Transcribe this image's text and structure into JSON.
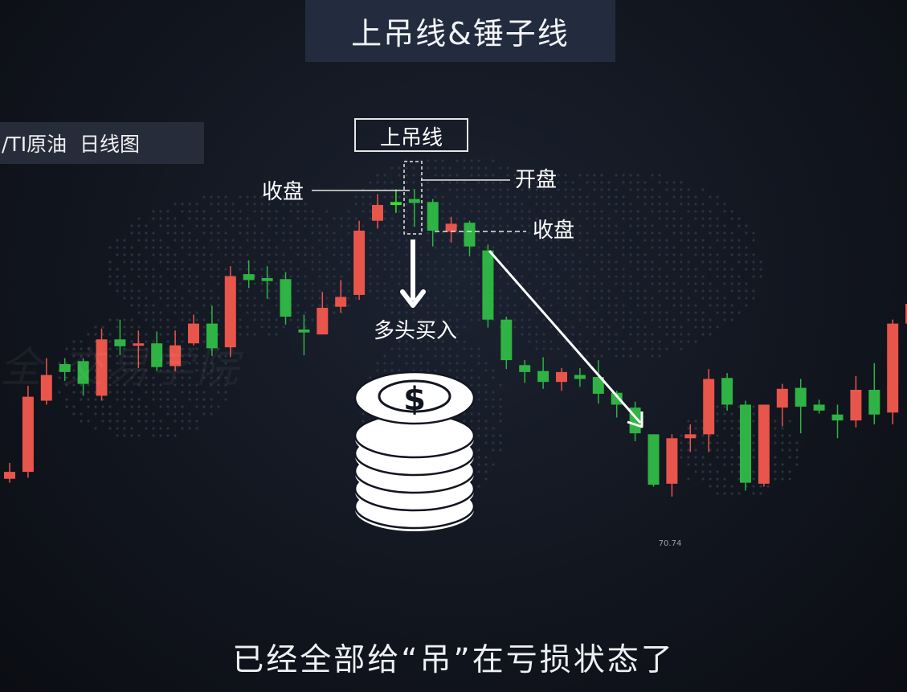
{
  "header": {
    "title": "上吊线&锤子线"
  },
  "source_tag": "/TI原油  日线图",
  "watermark": "全 交易学院",
  "subtitle": "已经全部给“吊”在亏损状态了",
  "annotations": {
    "hanging_label": "上吊线",
    "close_left": "收盘",
    "open": "开盘",
    "close_right": "收盘",
    "bulls_buy": "多头买入",
    "low_value": "70.74"
  },
  "colors": {
    "up": "#e8554a",
    "down": "#2fb344",
    "highlight": "#37e02a"
  },
  "icons": [
    "down-arrow-icon",
    "coin-stack-icon",
    "dollar-icon"
  ],
  "chart_data": {
    "type": "candlestick",
    "title": "上吊线&锤子线",
    "xlabel": "",
    "ylabel": "",
    "grid": false,
    "candles": [
      {
        "dir": "up",
        "open": 73.15,
        "close": 73.5,
        "high": 73.95,
        "low": 72.95
      },
      {
        "dir": "up",
        "open": 73.5,
        "close": 77.3,
        "high": 77.85,
        "low": 73.2
      },
      {
        "dir": "up",
        "open": 77.1,
        "close": 78.4,
        "high": 79.25,
        "low": 76.9
      },
      {
        "dir": "down",
        "open": 78.95,
        "close": 78.55,
        "high": 79.25,
        "low": 78.1
      },
      {
        "dir": "down",
        "open": 79.1,
        "close": 77.95,
        "high": 79.25,
        "low": 77.35
      },
      {
        "dir": "up",
        "open": 77.35,
        "close": 80.2,
        "high": 80.75,
        "low": 77.1
      },
      {
        "dir": "down",
        "open": 80.2,
        "close": 79.85,
        "high": 81.2,
        "low": 79.4
      },
      {
        "dir": "up",
        "open": 79.9,
        "close": 80.0,
        "high": 80.65,
        "low": 78.75
      },
      {
        "dir": "down",
        "open": 80.0,
        "close": 78.8,
        "high": 80.6,
        "low": 78.6
      },
      {
        "dir": "up",
        "open": 78.85,
        "close": 79.9,
        "high": 80.65,
        "low": 78.6
      },
      {
        "dir": "up",
        "open": 80.0,
        "close": 81.0,
        "high": 81.45,
        "low": 79.9
      },
      {
        "dir": "down",
        "open": 81.0,
        "close": 79.75,
        "high": 81.9,
        "low": 79.35
      },
      {
        "dir": "up",
        "open": 79.8,
        "close": 83.4,
        "high": 83.9,
        "low": 79.3
      },
      {
        "dir": "down",
        "open": 83.5,
        "close": 83.2,
        "high": 84.2,
        "low": 82.8
      },
      {
        "dir": "down",
        "open": 83.3,
        "close": 83.15,
        "high": 83.9,
        "low": 82.25
      },
      {
        "dir": "down",
        "open": 83.25,
        "close": 81.35,
        "high": 83.6,
        "low": 80.95
      },
      {
        "dir": "down",
        "open": 80.7,
        "close": 80.55,
        "high": 81.45,
        "low": 79.4
      },
      {
        "dir": "up",
        "open": 80.45,
        "close": 81.8,
        "high": 82.6,
        "low": 80.45
      },
      {
        "dir": "up",
        "open": 81.85,
        "close": 82.35,
        "high": 83.2,
        "low": 81.55
      },
      {
        "dir": "up",
        "open": 82.45,
        "close": 85.7,
        "high": 86.2,
        "low": 82.2
      },
      {
        "dir": "up",
        "open": 86.2,
        "close": 87.0,
        "high": 87.55,
        "low": 85.8
      },
      {
        "dir": "up",
        "open": 87.0,
        "close": 87.15,
        "high": 87.8,
        "low": 86.6
      },
      {
        "dir": "down",
        "open": 87.3,
        "close": 87.1,
        "high": 87.8,
        "low": 85.9
      },
      {
        "dir": "down",
        "open": 87.15,
        "close": 85.7,
        "high": 87.3,
        "low": 84.9
      },
      {
        "dir": "up",
        "open": 85.65,
        "close": 86.05,
        "high": 86.4,
        "low": 85.1
      },
      {
        "dir": "down",
        "open": 86.1,
        "close": 84.9,
        "high": 86.2,
        "low": 84.4
      },
      {
        "dir": "down",
        "open": 84.7,
        "close": 81.2,
        "high": 85.0,
        "low": 80.8
      },
      {
        "dir": "down",
        "open": 81.2,
        "close": 79.15,
        "high": 81.35,
        "low": 78.7
      },
      {
        "dir": "down",
        "open": 78.9,
        "close": 78.55,
        "high": 79.15,
        "low": 78.0
      },
      {
        "dir": "down",
        "open": 78.6,
        "close": 78.05,
        "high": 79.3,
        "low": 77.7
      },
      {
        "dir": "up",
        "open": 78.05,
        "close": 78.55,
        "high": 78.75,
        "low": 77.6
      },
      {
        "dir": "down",
        "open": 78.4,
        "close": 78.2,
        "high": 78.75,
        "low": 77.8
      },
      {
        "dir": "down",
        "open": 78.3,
        "close": 77.45,
        "high": 79.15,
        "low": 76.95
      },
      {
        "dir": "down",
        "open": 77.5,
        "close": 76.9,
        "high": 77.6,
        "low": 76.25
      },
      {
        "dir": "down",
        "open": 76.75,
        "close": 75.45,
        "high": 77.05,
        "low": 75.05
      },
      {
        "dir": "down",
        "open": 75.4,
        "close": 72.85,
        "high": 75.4,
        "low": 72.75
      },
      {
        "dir": "up",
        "open": 72.9,
        "close": 75.2,
        "high": 75.4,
        "low": 72.25
      },
      {
        "dir": "up",
        "open": 75.2,
        "close": 75.4,
        "high": 75.9,
        "low": 74.5
      },
      {
        "dir": "up",
        "open": 75.4,
        "close": 78.2,
        "high": 78.7,
        "low": 74.5
      },
      {
        "dir": "down",
        "open": 78.25,
        "close": 76.9,
        "high": 78.5,
        "low": 76.6
      },
      {
        "dir": "down",
        "open": 76.9,
        "close": 72.95,
        "high": 77.1,
        "low": 72.55
      },
      {
        "dir": "up",
        "open": 72.9,
        "close": 76.9,
        "high": 76.9,
        "low": 72.75
      },
      {
        "dir": "up",
        "open": 76.75,
        "close": 77.7,
        "high": 77.95,
        "low": 75.8
      },
      {
        "dir": "down",
        "open": 77.75,
        "close": 76.8,
        "high": 78.2,
        "low": 75.45
      },
      {
        "dir": "down",
        "open": 76.9,
        "close": 76.6,
        "high": 77.15,
        "low": 76.45
      },
      {
        "dir": "down",
        "open": 76.4,
        "close": 76.1,
        "high": 76.9,
        "low": 75.2
      },
      {
        "dir": "up",
        "open": 76.1,
        "close": 77.65,
        "high": 78.35,
        "low": 75.75
      },
      {
        "dir": "down",
        "open": 77.65,
        "close": 76.4,
        "high": 79.0,
        "low": 75.9
      },
      {
        "dir": "up",
        "open": 76.5,
        "close": 81.0,
        "high": 81.2,
        "low": 75.9
      },
      {
        "dir": "up",
        "open": 81.0,
        "close": 82.0,
        "high": 83.0,
        "low": 80.3
      }
    ],
    "highlight_index": 21
  }
}
